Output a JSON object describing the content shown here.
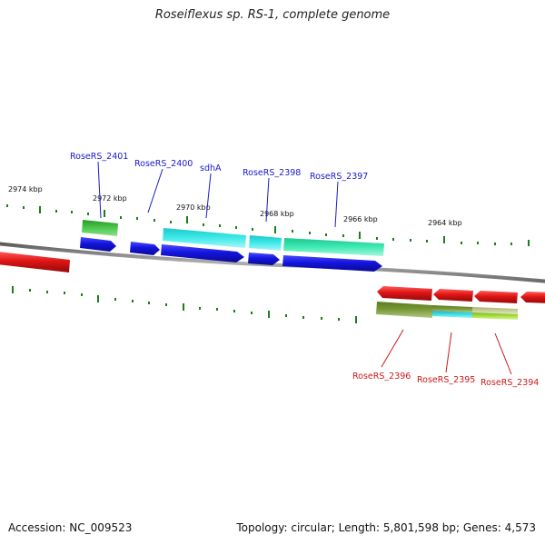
{
  "title": "Roseiflexus sp. RS-1, complete genome",
  "footer": {
    "accession": "Accession: NC_009523",
    "summary": "Topology: circular; Length: 5,801,598 bp; Genes: 4,573"
  },
  "ruler": {
    "labels": [
      "2974 kbp",
      "2972 kbp",
      "2970 kbp",
      "2968 kbp",
      "2966 kbp",
      "2964 kbp"
    ],
    "tick_color": "#1a7f1a"
  },
  "genes": [
    {
      "name": "RoseRS_2401",
      "strand": "forward",
      "label_color": "#1a1acc"
    },
    {
      "name": "RoseRS_2400",
      "strand": "forward",
      "label_color": "#1a1acc"
    },
    {
      "name": "sdhA",
      "strand": "forward",
      "label_color": "#1a1acc"
    },
    {
      "name": "RoseRS_2398",
      "strand": "forward",
      "label_color": "#1a1acc"
    },
    {
      "name": "RoseRS_2397",
      "strand": "forward",
      "label_color": "#1a1acc"
    },
    {
      "name": "RoseRS_2396",
      "strand": "reverse",
      "label_color": "#cc1a1a"
    },
    {
      "name": "RoseRS_2395",
      "strand": "reverse",
      "label_color": "#cc1a1a"
    },
    {
      "name": "RoseRS_2394",
      "strand": "reverse",
      "label_color": "#cc1a1a"
    }
  ],
  "colors": {
    "forward_cds": "#1414e0",
    "reverse_cds": "#e01414",
    "backbone": "#8a8a8a",
    "cog_green": "#3cb83c",
    "cog_cyan": "#33e0e0",
    "cog_aqua": "#33e0a8",
    "cog_olive": "#6e8c2a",
    "cog_lime": "#a8e03c",
    "cog_khaki": "#c0c890"
  }
}
